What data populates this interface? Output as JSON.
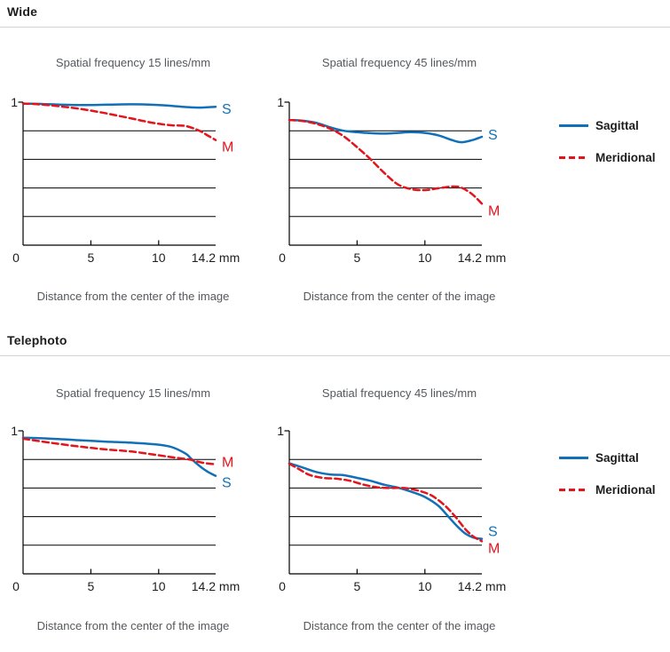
{
  "page": {
    "background": "#ffffff"
  },
  "colors": {
    "sagittal": "#1170b8",
    "meridional": "#e2151c",
    "axis": "#000000",
    "grid": "#000000",
    "rule": "#d4d4d4",
    "header_text": "#1d1d1d",
    "muted_text": "#55585c"
  },
  "sections": {
    "wide": {
      "header": "Wide"
    },
    "telephoto": {
      "header": "Telephoto"
    }
  },
  "legend": {
    "items": [
      {
        "name": "Sagittal",
        "style": "solid",
        "color_key": "sagittal"
      },
      {
        "name": "Meridional",
        "style": "dashed",
        "color_key": "meridional"
      }
    ]
  },
  "chart_data": [
    {
      "id": "wide-15",
      "section": "Wide",
      "type": "line",
      "title": "Spatial frequency 15 lines/mm",
      "xlabel": "Distance from the center of the image",
      "ylim": [
        0,
        1
      ],
      "xlim": [
        0,
        14.2
      ],
      "y_top_label": "1",
      "x_tick_values": [
        0,
        5,
        10
      ],
      "x_tick_labels": [
        "0",
        "5",
        "10"
      ],
      "x_end_label": "14.2 mm",
      "gridlines_y": [
        0.2,
        0.4,
        0.6,
        0.8
      ],
      "grid": "horizontal-only",
      "legend_position": "right",
      "series": [
        {
          "name": "Sagittal",
          "label": "S",
          "style": "solid",
          "color_key": "sagittal",
          "label_dy": 8,
          "x": [
            0,
            1,
            2,
            3,
            4,
            5,
            6,
            7,
            8,
            9,
            10,
            11,
            12,
            13,
            14.2
          ],
          "y": [
            0.99,
            0.988,
            0.985,
            0.982,
            0.98,
            0.98,
            0.982,
            0.984,
            0.985,
            0.984,
            0.98,
            0.974,
            0.966,
            0.962,
            0.968
          ]
        },
        {
          "name": "Meridional",
          "label": "M",
          "style": "dashed",
          "color_key": "meridional",
          "label_dy": 13,
          "x": [
            0,
            1,
            2,
            3,
            4,
            5,
            6,
            7,
            8,
            9,
            10,
            11,
            12,
            13,
            13.6,
            14.2
          ],
          "y": [
            0.99,
            0.986,
            0.978,
            0.968,
            0.956,
            0.941,
            0.924,
            0.905,
            0.886,
            0.866,
            0.849,
            0.838,
            0.833,
            0.8,
            0.768,
            0.735
          ]
        }
      ]
    },
    {
      "id": "wide-45",
      "section": "Wide",
      "type": "line",
      "title": "Spatial frequency 45 lines/mm",
      "xlabel": "Distance from the center of the image",
      "ylim": [
        0,
        1
      ],
      "xlim": [
        0,
        14.2
      ],
      "y_top_label": "1",
      "x_tick_values": [
        0,
        5,
        10
      ],
      "x_tick_labels": [
        "0",
        "5",
        "10"
      ],
      "x_end_label": "14.2 mm",
      "gridlines_y": [
        0.2,
        0.4,
        0.6,
        0.8
      ],
      "grid": "horizontal-only",
      "legend_position": "right",
      "series": [
        {
          "name": "Sagittal",
          "label": "S",
          "style": "solid",
          "color_key": "sagittal",
          "label_dy": 3,
          "x": [
            0,
            1,
            2,
            3,
            4,
            5,
            6,
            7,
            8,
            9,
            10,
            11,
            12,
            12.7,
            13.5,
            14.2
          ],
          "y": [
            0.875,
            0.87,
            0.855,
            0.825,
            0.8,
            0.79,
            0.783,
            0.78,
            0.785,
            0.79,
            0.785,
            0.768,
            0.735,
            0.72,
            0.735,
            0.758
          ]
        },
        {
          "name": "Meridional",
          "label": "M",
          "style": "dashed",
          "color_key": "meridional",
          "label_dy": 13,
          "x": [
            0,
            1,
            2,
            3,
            4,
            5,
            6,
            7,
            8,
            9,
            10,
            11,
            12,
            12.7,
            13.5,
            14.2
          ],
          "y": [
            0.875,
            0.868,
            0.848,
            0.815,
            0.762,
            0.685,
            0.6,
            0.505,
            0.425,
            0.392,
            0.385,
            0.398,
            0.41,
            0.402,
            0.355,
            0.29
          ]
        }
      ]
    },
    {
      "id": "tele-15",
      "section": "Telephoto",
      "type": "line",
      "title": "Spatial frequency 15 lines/mm",
      "xlabel": "Distance from the center of the image",
      "ylim": [
        0,
        1
      ],
      "xlim": [
        0,
        14.2
      ],
      "y_top_label": "1",
      "x_tick_values": [
        0,
        5,
        10
      ],
      "x_tick_labels": [
        "0",
        "5",
        "10"
      ],
      "x_end_label": "14.2 mm",
      "gridlines_y": [
        0.2,
        0.4,
        0.6,
        0.8
      ],
      "grid": "horizontal-only",
      "legend_position": "right",
      "series": [
        {
          "name": "Sagittal",
          "label": "S",
          "style": "solid",
          "color_key": "sagittal",
          "label_dy": 13,
          "x": [
            0,
            2,
            4,
            6,
            8,
            10,
            11,
            12,
            12.4,
            13,
            13.6,
            14.2
          ],
          "y": [
            0.952,
            0.945,
            0.935,
            0.925,
            0.917,
            0.903,
            0.885,
            0.84,
            0.805,
            0.755,
            0.715,
            0.685
          ]
        },
        {
          "name": "Meridional",
          "label": "M",
          "style": "dashed",
          "color_key": "meridional",
          "label_dy": 3,
          "x": [
            0,
            2,
            4,
            6,
            8,
            10,
            11,
            12,
            12.4,
            13,
            13.6,
            14.2
          ],
          "y": [
            0.945,
            0.917,
            0.892,
            0.871,
            0.855,
            0.829,
            0.815,
            0.803,
            0.797,
            0.782,
            0.772,
            0.766
          ]
        }
      ]
    },
    {
      "id": "tele-45",
      "section": "Telephoto",
      "type": "line",
      "title": "Spatial frequency 45 lines/mm",
      "xlabel": "Distance from the center of the image",
      "ylim": [
        0,
        1
      ],
      "xlim": [
        0,
        14.2
      ],
      "y_top_label": "1",
      "x_tick_values": [
        0,
        5,
        10
      ],
      "x_tick_labels": [
        "0",
        "5",
        "10"
      ],
      "x_end_label": "14.2 mm",
      "gridlines_y": [
        0.2,
        0.4,
        0.6,
        0.8
      ],
      "grid": "horizontal-only",
      "legend_position": "right",
      "series": [
        {
          "name": "Sagittal",
          "label": "S",
          "style": "solid",
          "color_key": "sagittal",
          "label_dy": -3,
          "x": [
            0,
            1,
            2,
            3,
            4,
            5,
            6,
            7,
            8,
            9,
            10,
            11,
            11.7,
            12.4,
            13,
            13.6,
            14.2
          ],
          "y": [
            0.773,
            0.743,
            0.712,
            0.695,
            0.69,
            0.671,
            0.65,
            0.623,
            0.603,
            0.574,
            0.537,
            0.475,
            0.403,
            0.331,
            0.28,
            0.253,
            0.245
          ]
        },
        {
          "name": "Meridional",
          "label": "M",
          "style": "dashed",
          "color_key": "meridional",
          "label_dy": 13,
          "x": [
            0,
            0.7,
            1.5,
            2.5,
            3.5,
            4.5,
            5.5,
            6.5,
            7.5,
            8.5,
            9.5,
            10.5,
            11.5,
            12.3,
            13,
            13.6,
            14.2
          ],
          "y": [
            0.77,
            0.733,
            0.691,
            0.671,
            0.665,
            0.65,
            0.623,
            0.605,
            0.6,
            0.6,
            0.582,
            0.547,
            0.475,
            0.393,
            0.31,
            0.259,
            0.228
          ]
        }
      ]
    }
  ]
}
